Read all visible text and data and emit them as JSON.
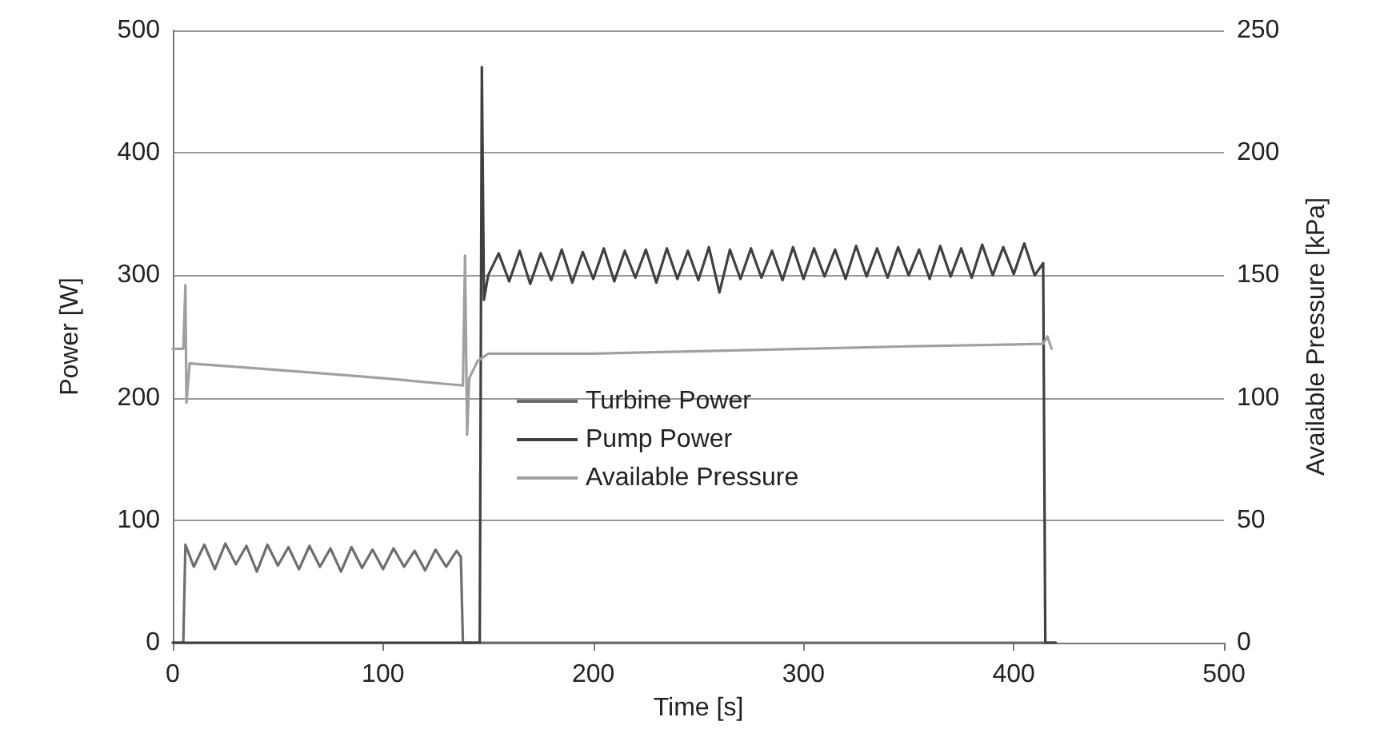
{
  "chart_data": {
    "type": "line",
    "xlabel": "Time [s]",
    "ylabel": "Power [W]",
    "y2label": "Available Pressure [kPa]",
    "xlim": [
      0,
      500
    ],
    "xticks": [
      0,
      100,
      200,
      300,
      400,
      500
    ],
    "ylim": [
      0,
      500
    ],
    "yticks": [
      0,
      100,
      200,
      300,
      400,
      500
    ],
    "y2lim": [
      0,
      250
    ],
    "y2ticks": [
      0,
      50,
      100,
      150,
      200,
      250
    ],
    "grid": "y",
    "legend": "bottom",
    "marker": "none",
    "line_style": "solid",
    "series": [
      {
        "name": "Turbine Power",
        "color": "#6e6e6e",
        "x": [
          0,
          5,
          6,
          10,
          15,
          20,
          25,
          30,
          35,
          40,
          45,
          50,
          55,
          60,
          65,
          70,
          75,
          80,
          85,
          90,
          95,
          100,
          105,
          110,
          115,
          120,
          125,
          130,
          135,
          137,
          138,
          420
        ],
        "values": [
          0,
          0,
          80,
          62,
          80,
          60,
          81,
          64,
          79,
          58,
          80,
          63,
          78,
          60,
          79,
          62,
          77,
          58,
          78,
          61,
          76,
          60,
          77,
          62,
          75,
          59,
          76,
          62,
          75,
          70,
          0,
          0
        ]
      },
      {
        "name": "Pump Power",
        "color": "#404040",
        "x": [
          0,
          146,
          147,
          148,
          150,
          155,
          160,
          165,
          170,
          175,
          180,
          185,
          190,
          195,
          200,
          205,
          210,
          215,
          220,
          225,
          230,
          235,
          240,
          245,
          250,
          255,
          260,
          265,
          270,
          275,
          280,
          285,
          290,
          295,
          300,
          305,
          310,
          315,
          320,
          325,
          330,
          335,
          340,
          345,
          350,
          355,
          360,
          365,
          370,
          375,
          380,
          385,
          390,
          395,
          400,
          405,
          410,
          414,
          415,
          420
        ],
        "values": [
          0,
          0,
          470,
          280,
          300,
          318,
          295,
          320,
          293,
          318,
          296,
          321,
          294,
          319,
          297,
          322,
          295,
          320,
          298,
          321,
          294,
          322,
          297,
          320,
          296,
          323,
          286,
          321,
          297,
          322,
          298,
          320,
          296,
          323,
          297,
          322,
          299,
          321,
          297,
          324,
          299,
          322,
          298,
          323,
          300,
          321,
          297,
          324,
          299,
          322,
          298,
          325,
          300,
          323,
          301,
          326,
          300,
          310,
          0,
          0
        ]
      },
      {
        "name": "Available Pressure",
        "color": "#a0a0a0",
        "axis": "y2",
        "x": [
          0,
          5,
          6,
          6.5,
          8,
          40,
          70,
          100,
          138,
          139,
          140,
          141,
          145,
          150,
          200,
          250,
          300,
          350,
          414,
          416,
          418
        ],
        "values": [
          120,
          120,
          146,
          98,
          114,
          112,
          110,
          108,
          105,
          158,
          85,
          108,
          115,
          118,
          118,
          119,
          120,
          121,
          122,
          125,
          120
        ]
      }
    ]
  }
}
